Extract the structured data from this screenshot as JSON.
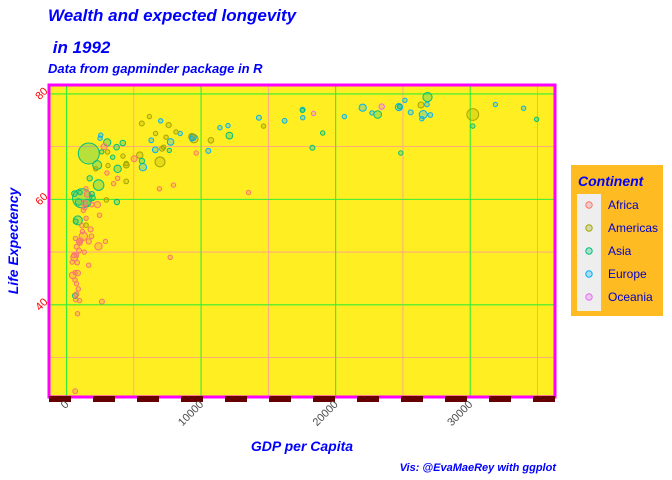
{
  "chart_data": {
    "type": "scatter",
    "title": "Wealth and expected longevity",
    "title_line2": " in 1992",
    "subtitle": "Data from gapminder package in R",
    "xlabel": "GDP per Capita",
    "ylabel": "Life Expectency",
    "caption": "Vis: @EvaMaeRey with ggplot",
    "xlim": [
      -1300,
      36300
    ],
    "ylim": [
      22.5,
      81.7
    ],
    "x_ticks": [
      0,
      10000,
      20000,
      30000
    ],
    "x_tick_labels": [
      "0",
      "10000",
      "20000",
      "30000"
    ],
    "y_ticks": [
      40,
      60,
      80
    ],
    "y_tick_labels": [
      "40",
      "60",
      "80"
    ],
    "grid": true,
    "legend": {
      "title": "Continent",
      "position": "right",
      "items": [
        "Africa",
        "Americas",
        "Asia",
        "Europe",
        "Oceania"
      ]
    },
    "colors": {
      "panel_background": "#ffee22",
      "panel_border": "#ff00ff",
      "major_grid": "#33ee33",
      "minor_grid": "#ff9999",
      "axis_ticks": "#660000",
      "text_blue": "#0000ff",
      "y_tick_text": "#ff0000",
      "legend_background": "#ffbb22",
      "legend_key_background": "#eeeeee",
      "Africa": "#F8766D",
      "Americas": "#A3A500",
      "Asia": "#00BF7D",
      "Europe": "#00B0F6",
      "Oceania": "#E76BF3"
    },
    "series": [
      {
        "name": "Africa",
        "points": [
          [
            5023,
            67.7
          ],
          [
            2628,
            40.6
          ],
          [
            1191,
            53.9
          ],
          [
            7954,
            62.7
          ],
          [
            932,
            50.3
          ],
          [
            631,
            44.7
          ],
          [
            1794,
            54.3
          ],
          [
            3000,
            65.0
          ],
          [
            747,
            49.4
          ],
          [
            1004,
            51.7
          ],
          [
            1247,
            57.9
          ],
          [
            462,
            45.6
          ],
          [
            2891,
            52.0
          ],
          [
            1649,
            52.0
          ],
          [
            2378,
            51.1
          ],
          [
            3794,
            64.0
          ],
          [
            7704,
            49.0
          ],
          [
            582,
            49.0
          ],
          [
            421,
            48.1
          ],
          [
            13522,
            61.3
          ],
          [
            665,
            52.6
          ],
          [
            926,
            52.0
          ],
          [
            794,
            48.0
          ],
          [
            746,
            44.0
          ],
          [
            1341,
            59.3
          ],
          [
            977,
            40.8
          ],
          [
            636,
            46.1
          ],
          [
            9640,
            68.8
          ],
          [
            1041,
            52.2
          ],
          [
            563,
            49.4
          ],
          [
            1455,
            56.4
          ],
          [
            1361,
            58.4
          ],
          [
            2786,
            70.0
          ],
          [
            6900,
            62.0
          ],
          [
            2450,
            57.0
          ],
          [
            1880,
            59.0
          ],
          [
            1320,
            50.0
          ],
          [
            1250,
            53.0
          ],
          [
            1150,
            55.0
          ],
          [
            880,
            43.0
          ],
          [
            820,
            38.3
          ],
          [
            740,
            42.0
          ],
          [
            700,
            41.0
          ],
          [
            650,
            23.6
          ],
          [
            1650,
            47.5
          ],
          [
            1550,
            61.0
          ],
          [
            2300,
            59.0
          ],
          [
            3500,
            63.0
          ],
          [
            1440,
            62.0
          ],
          [
            830,
            46.0
          ],
          [
            1850,
            53.0
          ],
          [
            760,
            51.0
          ]
        ],
        "pops": [
          26,
          11,
          5,
          1.3,
          10,
          6,
          13,
          0.4,
          3,
          6,
          0.5,
          41,
          2.3,
          13,
          59,
          0.4,
          3.5,
          50,
          1,
          1,
          1,
          16,
          6,
          1,
          25,
          1.8,
          2,
          5,
          13,
          10,
          1.1,
          2,
          26,
          1,
          1.6,
          8,
          1,
          93,
          7,
          1.5,
          4,
          8,
          8,
          8,
          4,
          25,
          29,
          2,
          3,
          19,
          8,
          10
        ]
      },
      {
        "name": "Americas",
        "points": [
          [
            9308,
            71.9
          ],
          [
            2962,
            59.9
          ],
          [
            6950,
            67.1
          ],
          [
            26343,
            77.9
          ],
          [
            7596,
            74.1
          ],
          [
            5444,
            68.4
          ],
          [
            6160,
            75.7
          ],
          [
            5593,
            74.4
          ],
          [
            3044,
            69.0
          ],
          [
            7103,
            69.6
          ],
          [
            4444,
            66.8
          ],
          [
            4439,
            63.4
          ],
          [
            1456,
            55.1
          ],
          [
            3081,
            66.4
          ],
          [
            7404,
            71.8
          ],
          [
            9472,
            71.5
          ],
          [
            2170,
            65.8
          ],
          [
            6618,
            72.5
          ],
          [
            4196,
            68.2
          ],
          [
            4445,
            66.5
          ],
          [
            14642,
            73.9
          ],
          [
            7217,
            69.9
          ],
          [
            30190,
            76.1
          ],
          [
            8138,
            72.8
          ],
          [
            10733,
            71.2
          ]
        ],
        "pops": [
          33,
          7,
          155,
          28,
          14,
          34,
          3.2,
          11,
          7.4,
          10,
          5.3,
          8.9,
          6.3,
          5,
          2.4,
          88,
          4,
          2.5,
          4.5,
          22,
          3.6,
          1.2,
          256,
          3.1,
          20
        ]
      },
      {
        "name": "Asia",
        "points": [
          [
            649,
            41.7
          ],
          [
            19035,
            72.6
          ],
          [
            838,
            56.0
          ],
          [
            682,
            55.8
          ],
          [
            1655,
            68.7
          ],
          [
            24757,
            77.6
          ],
          [
            1164,
            60.2
          ],
          [
            2383,
            62.7
          ],
          [
            3795,
            65.8
          ],
          [
            3745,
            59.5
          ],
          [
            17532,
            76.9
          ],
          [
            26825,
            79.4
          ],
          [
            3431,
            68.0
          ],
          [
            3726,
            69.9
          ],
          [
            12104,
            72.1
          ],
          [
            34933,
            75.2
          ],
          [
            7641,
            69.3
          ],
          [
            1010,
            61.3
          ],
          [
            598,
            61.1
          ],
          [
            898,
            59.5
          ],
          [
            1932,
            60.3
          ],
          [
            2280,
            66.5
          ],
          [
            23125,
            76.1
          ],
          [
            24841,
            68.8
          ],
          [
            5601,
            67.3
          ],
          [
            2616,
            69.0
          ],
          [
            4187,
            70.7
          ],
          [
            3026,
            70.8
          ],
          [
            1514,
            59.3
          ],
          [
            1726,
            64.0
          ],
          [
            30192,
            73.9
          ],
          [
            1880,
            61.0
          ],
          [
            18270,
            69.8
          ]
        ],
        "pops": [
          16,
          0.5,
          113,
          10,
          1165,
          6,
          872,
          185,
          60,
          17,
          4.9,
          125,
          3.9,
          21,
          43,
          1.4,
          3.2,
          2.1,
          20,
          41,
          21,
          115,
          69,
          1.9,
          17.5,
          3,
          20,
          56,
          69,
          17,
          2.3,
          13,
          10
        ]
      },
      {
        "name": "Europe",
        "points": [
          [
            2497,
            71.6
          ],
          [
            27042,
            76.0
          ],
          [
            25576,
            76.5
          ],
          [
            2547,
            72.2
          ],
          [
            6302,
            71.2
          ],
          [
            8447,
            72.5
          ],
          [
            14298,
            75.5
          ],
          [
            26407,
            75.3
          ],
          [
            20647,
            75.7
          ],
          [
            24704,
            77.5
          ],
          [
            26505,
            76.1
          ],
          [
            17541,
            77.0
          ],
          [
            10536,
            69.2
          ],
          [
            25144,
            78.8
          ],
          [
            17559,
            75.5
          ],
          [
            22014,
            77.4
          ],
          [
            7003,
            74.9
          ],
          [
            33965,
            77.3
          ],
          [
            7738,
            70.9
          ],
          [
            16207,
            74.9
          ],
          [
            6598,
            69.4
          ],
          [
            9326,
            71.5
          ],
          [
            11401,
            73.6
          ],
          [
            24769,
            77.6
          ],
          [
            26791,
            78.0
          ],
          [
            31872,
            78.0
          ],
          [
            5678,
            66.1
          ],
          [
            22705,
            76.4
          ],
          [
            12000,
            74.0
          ],
          [
            9400,
            71.8
          ]
        ],
        "pops": [
          3.3,
          7.9,
          10,
          4.3,
          8.7,
          4.5,
          10,
          5.2,
          5,
          57,
          80,
          10,
          10,
          0.26,
          3.5,
          57,
          0.6,
          0.4,
          38,
          9.9,
          22,
          0.6,
          2,
          8.7,
          6.9,
          4.3,
          58,
          5.2,
          1.9,
          39
        ]
      },
      {
        "name": "Oceania",
        "points": [
          [
            23425,
            77.6
          ],
          [
            18363,
            76.3
          ]
        ],
        "pops": [
          17.5,
          3.4
        ]
      }
    ]
  }
}
